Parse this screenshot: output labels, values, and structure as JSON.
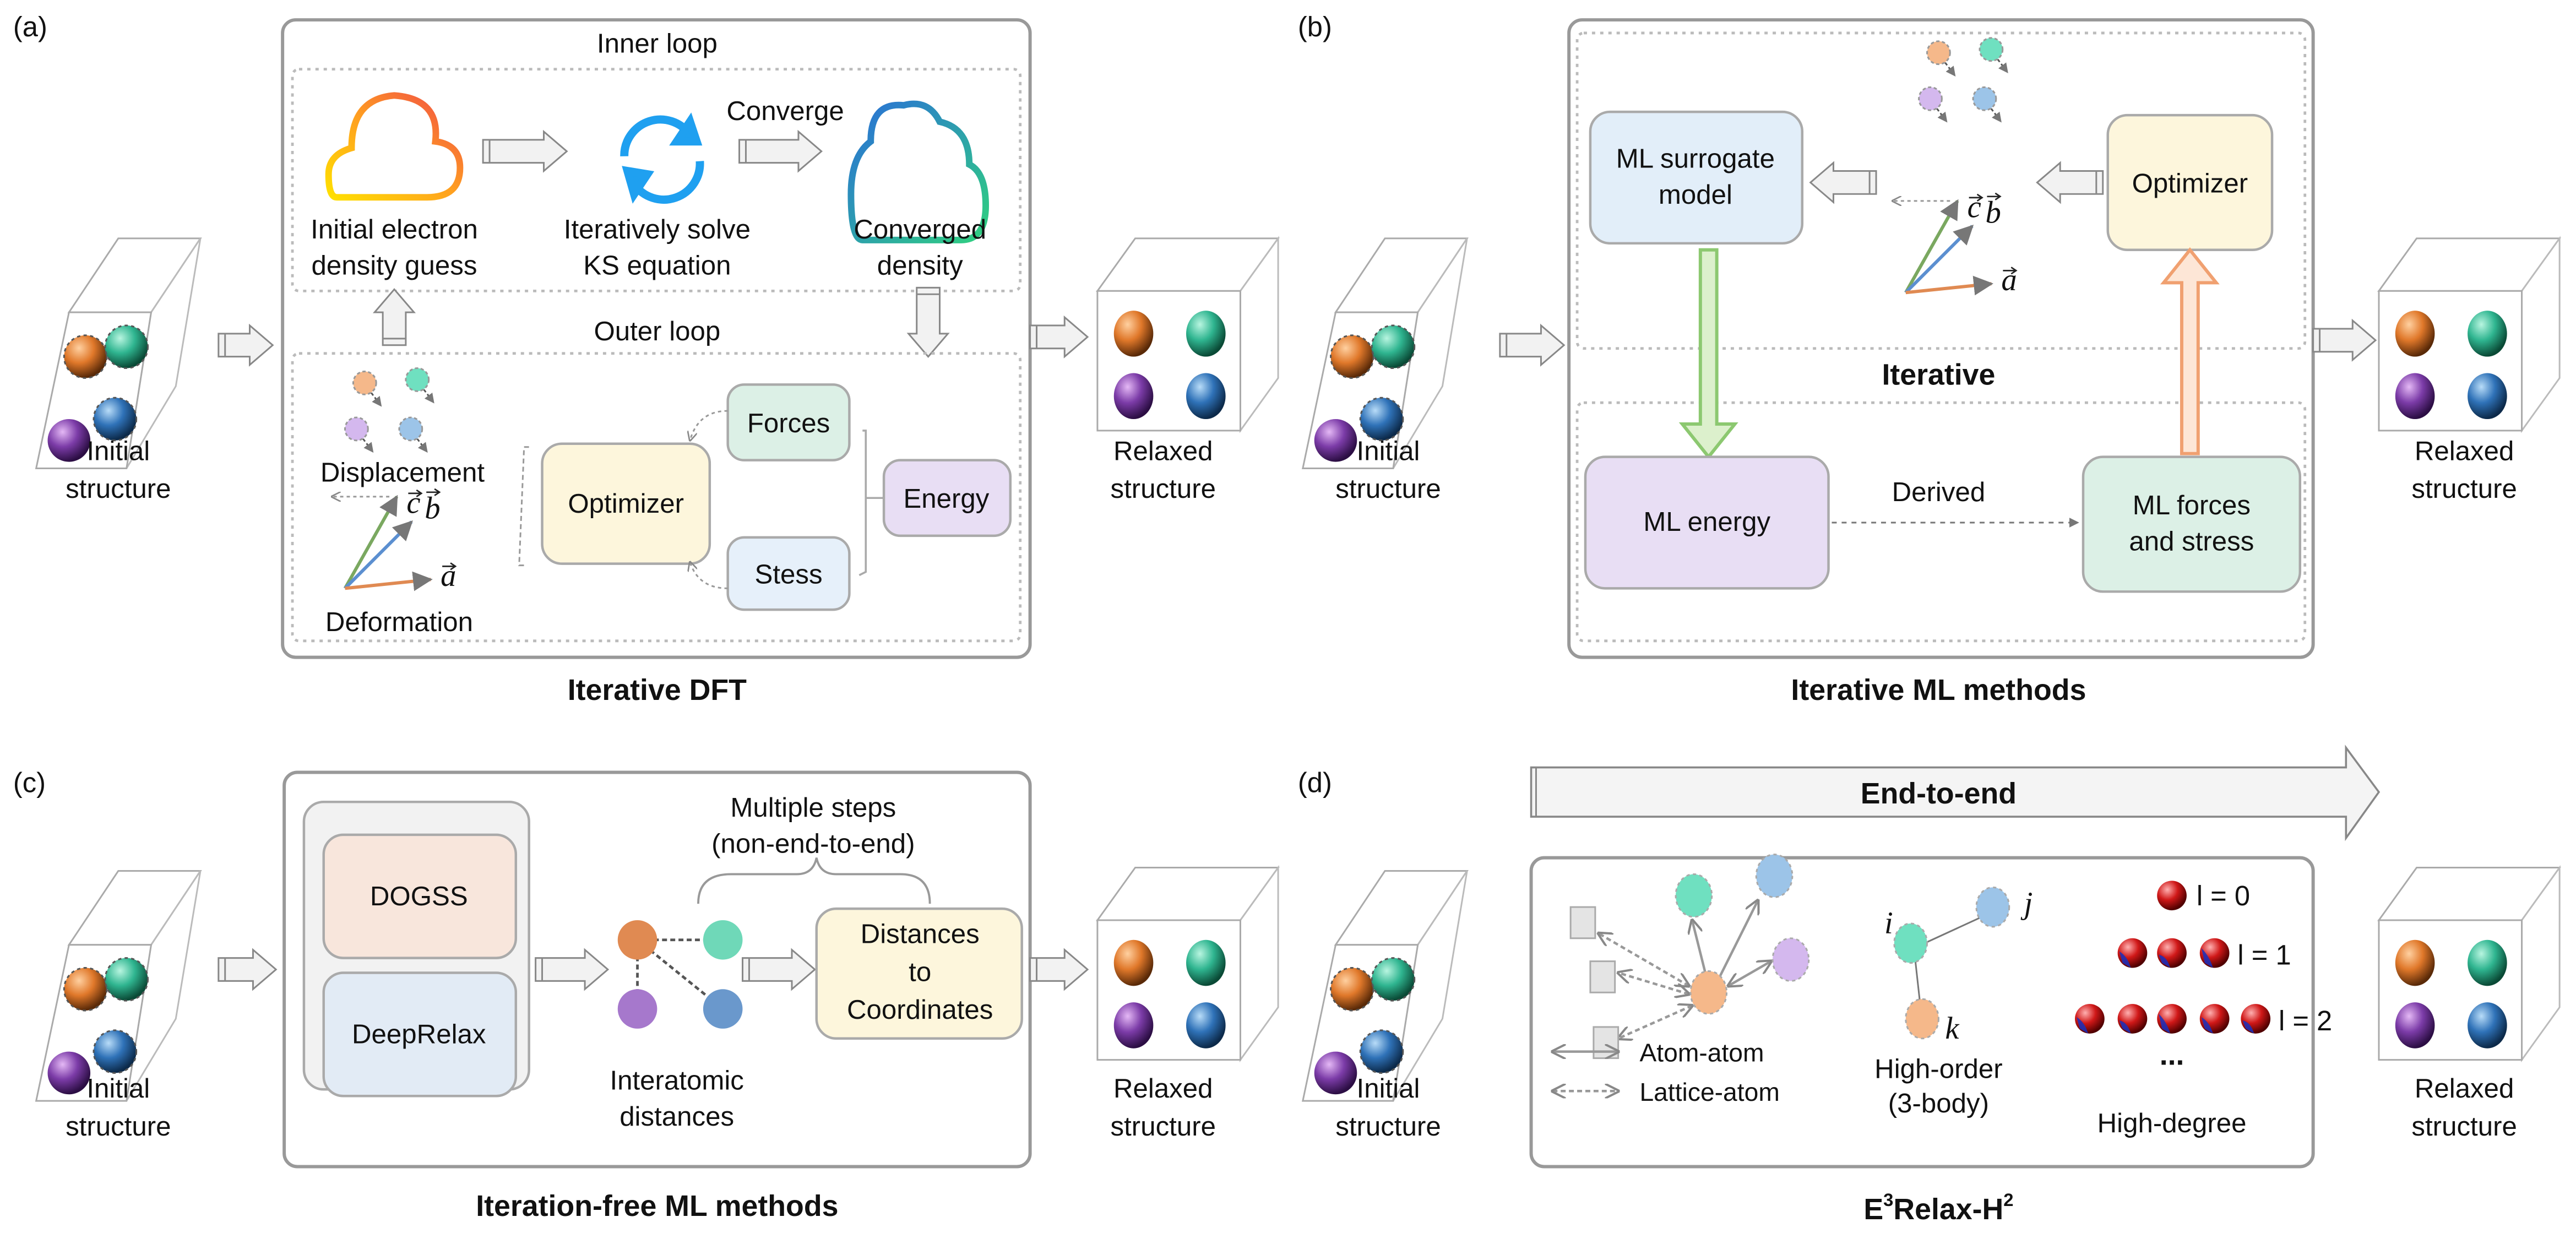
{
  "panel_a": {
    "label": "(a)",
    "title": "Iterative DFT",
    "inner_loop": "Inner loop",
    "outer_loop": "Outer loop",
    "initial_guess": [
      "Initial electron",
      "density guess"
    ],
    "solve": [
      "Iteratively solve",
      "KS equation"
    ],
    "converge": "Converge",
    "converged": [
      "Converged",
      "density"
    ],
    "displacement": "Displacement",
    "deformation": "Deformation",
    "optimizer": "Optimizer",
    "forces": "Forces",
    "stress": "Stess",
    "energy": "Energy",
    "initial_structure": [
      "Initial",
      "structure"
    ],
    "relaxed_structure": [
      "Relaxed",
      "structure"
    ]
  },
  "panel_b": {
    "label": "(b)",
    "title": "Iterative ML methods",
    "surrogate": [
      "ML surrogate",
      "model"
    ],
    "optimizer": "Optimizer",
    "iterative": "Iterative",
    "ml_energy": "ML energy",
    "derived": "Derived",
    "ml_forces": [
      "ML forces",
      "and stress"
    ],
    "initial_structure": [
      "Initial",
      "structure"
    ],
    "relaxed_structure": [
      "Relaxed",
      "structure"
    ]
  },
  "panel_c": {
    "label": "(c)",
    "title": "Iteration-free ML methods",
    "dogss": "DOGSS",
    "deeprelax": "DeepRelax",
    "interatomic": [
      "Interatomic",
      "distances"
    ],
    "multiple_steps": [
      "Multiple steps",
      "(non-end-to-end)"
    ],
    "dist_to_coords": [
      "Distances",
      "to",
      "Coordinates"
    ],
    "initial_structure": [
      "Initial",
      "structure"
    ],
    "relaxed_structure": [
      "Relaxed",
      "structure"
    ]
  },
  "panel_d": {
    "label": "(d)",
    "title_main": "E",
    "title_sup1": "3",
    "title_mid": "Relax-H",
    "title_sup2": "2",
    "end_to_end": "End-to-end",
    "atom_atom": "Atom-atom",
    "lattice_atom": "Lattice-atom",
    "node_i": "i",
    "node_j": "j",
    "node_k": "k",
    "high_order": [
      "High-order",
      "(3-body)"
    ],
    "l0": "l = 0",
    "l1": "l = 1",
    "l2": "l = 2",
    "ellipsis": "...",
    "high_degree": "High-degree",
    "initial_structure": [
      "Initial",
      "structure"
    ],
    "relaxed_structure": [
      "Relaxed",
      "structure"
    ]
  },
  "vectors": {
    "a": "a",
    "b": "b",
    "c": "c"
  },
  "colors": {
    "orange_atom": "#e0782a",
    "green_atom": "#2fb590",
    "purple_atom": "#7c3ca8",
    "blue_atom": "#2f72b8",
    "optimizer_fill": "#fdf6dc",
    "forces_fill": "#dcf0e6",
    "stress_fill": "#e6f0fa",
    "energy_fill": "#e8def4",
    "surrogate_fill": "#e2eef9",
    "ml_energy_fill": "#e8def4",
    "ml_forces_fill": "#dcf0e6",
    "dogss_fill": "#f8e6dc",
    "deeprelax_fill": "#e2ebf5",
    "green_arrow": "#8cc870",
    "orange_arrow": "#f0a070"
  }
}
